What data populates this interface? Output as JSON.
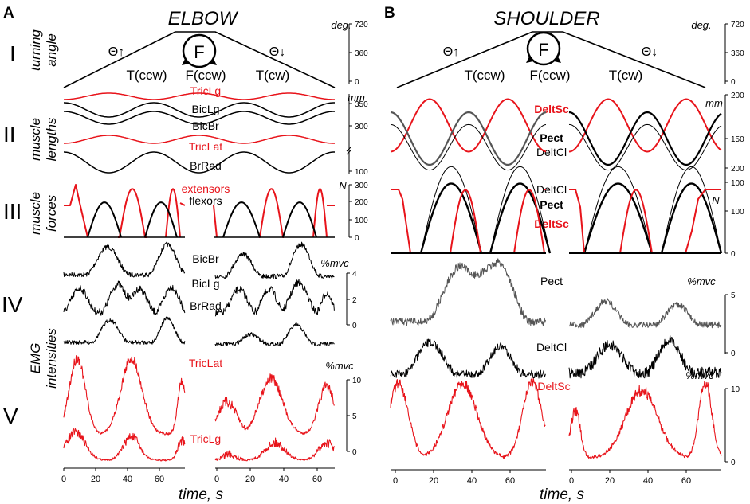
{
  "chart_data": {
    "type": "line",
    "panel_labels": [
      "A",
      "B"
    ],
    "titles": [
      "ELBOW",
      "SHOULDER"
    ],
    "row_numerals": [
      "I",
      "II",
      "III",
      "IV",
      "V"
    ],
    "row_labels": [
      [
        "turning",
        "angle"
      ],
      [
        "muscle",
        "lengths"
      ],
      [
        "muscle",
        "forces"
      ],
      [
        "EMG",
        "intensities"
      ]
    ],
    "xlabel": "time, s",
    "x_ticks": [
      "0",
      "20",
      "40",
      "60"
    ],
    "xlim": [
      0,
      70
    ],
    "angle": {
      "unit": "deg.",
      "ticks": [
        "720",
        "360",
        "0"
      ],
      "ylim": [
        0,
        720
      ],
      "phase_labels": [
        "T(ccw)",
        "F(ccw)",
        "T(cw)"
      ],
      "circle_label": "F",
      "theta_up": "Θ↑",
      "theta_down": "Θ↓"
    },
    "elbow": {
      "lengths": {
        "unit": "mm",
        "ticks": [
          "350",
          "300",
          "100"
        ],
        "series": [
          {
            "name": "TricLg",
            "color": "#e8141b"
          },
          {
            "name": "BicLg",
            "color": "#000000"
          },
          {
            "name": "BicBr",
            "color": "#000000"
          },
          {
            "name": "TricLat",
            "color": "#e8141b"
          },
          {
            "name": "BrRad",
            "color": "#000000"
          }
        ]
      },
      "forces": {
        "unit": "N",
        "ticks": [
          "300",
          "200",
          "100",
          "0"
        ],
        "ylim": [
          0,
          300
        ],
        "series": [
          {
            "name": "extensors",
            "color": "#e8141b",
            "peak": 270
          },
          {
            "name": "flexors",
            "color": "#000000",
            "peak": 195
          }
        ]
      },
      "emg_flexors": {
        "unit": "%mvc",
        "ticks": [
          "4",
          "2",
          "0"
        ],
        "ylim": [
          0,
          4
        ],
        "series": [
          "BicBr",
          "BicLg",
          "BrRad"
        ]
      },
      "emg_extensors": {
        "unit": "%mvc",
        "ticks": [
          "10",
          "5",
          "0"
        ],
        "ylim": [
          0,
          10
        ],
        "series": [
          "TricLat",
          "TricLg"
        ]
      }
    },
    "shoulder": {
      "lengths": {
        "unit": "mm",
        "ticks": [
          "200",
          "150",
          "100"
        ],
        "ylim": [
          100,
          200
        ],
        "series": [
          {
            "name": "DeltSc",
            "color": "#e8141b"
          },
          {
            "name": "Pect",
            "color": "#555555"
          },
          {
            "name": "DeltCl",
            "color": "#000000"
          }
        ]
      },
      "forces": {
        "unit": "N",
        "ticks": [
          "200",
          "100",
          "0"
        ],
        "ylim": [
          0,
          200
        ],
        "series": [
          {
            "name": "DeltCl",
            "color": "#000000",
            "peak": 205
          },
          {
            "name": "Pect",
            "color": "#000000",
            "peak": 165
          },
          {
            "name": "DeltSc",
            "color": "#e8141b",
            "peak": 150
          }
        ]
      },
      "emg_pect": {
        "unit": "%mvc",
        "ticks": [
          "5"
        ],
        "series": [
          "Pect"
        ]
      },
      "emg_deltcl": {
        "unit": "%mvc",
        "ticks": [
          "0"
        ],
        "series": [
          "DeltCl"
        ]
      },
      "emg_deltsc": {
        "unit": "%mvc",
        "ticks": [
          "10",
          "0"
        ],
        "ylim": [
          0,
          10
        ],
        "series": [
          "DeltSc"
        ]
      }
    }
  }
}
